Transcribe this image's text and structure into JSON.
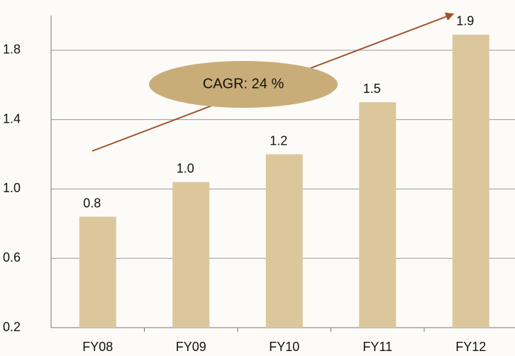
{
  "chart_data": {
    "type": "bar",
    "categories": [
      "FY08",
      "FY09",
      "FY10",
      "FY11",
      "FY12"
    ],
    "values": [
      0.84,
      1.04,
      1.2,
      1.5,
      1.89
    ],
    "value_labels": [
      "0.8",
      "1.0",
      "1.2",
      "1.5",
      "1.9"
    ],
    "color": "#dcc79c",
    "ylim": [
      0.2,
      2.0
    ],
    "yticks": [
      0.2,
      0.6,
      {
        "value": 1,
        "label": "1.0"
      },
      1.4,
      1.8
    ],
    "grid": true,
    "annotation": "CAGR: 24 %"
  }
}
